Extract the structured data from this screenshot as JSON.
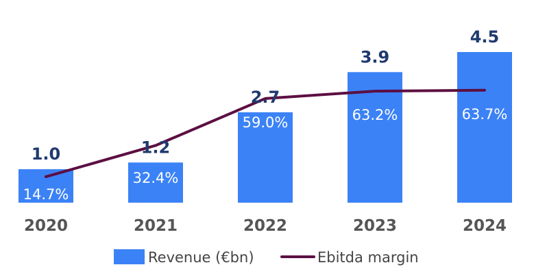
{
  "chart_data": {
    "type": "bar",
    "categories": [
      "2020",
      "2021",
      "2022",
      "2023",
      "2024"
    ],
    "series": [
      {
        "name": "Revenue (€bn)",
        "type": "bar",
        "values": [
          1.0,
          1.2,
          2.7,
          3.9,
          4.5
        ],
        "labels": [
          "1.0",
          "1.2",
          "2.7",
          "3.9",
          "4.5"
        ],
        "color": "#3b82f6"
      },
      {
        "name": "Ebitda margin",
        "type": "line",
        "values": [
          14.7,
          32.4,
          59.0,
          63.2,
          63.7
        ],
        "labels": [
          "14.7%",
          "32.4%",
          "59.0%",
          "63.2%",
          "63.7%"
        ],
        "color": "#5c0f42"
      }
    ],
    "value_label_color": "#1f3a6e",
    "margin_label_color": "#ffffff",
    "tick_label_color": "#555555",
    "legend": {
      "placement": "bottom",
      "text_color": "#444444"
    },
    "grid": false,
    "ylim_bar": [
      0,
      5.0
    ],
    "ylim_line": [
      0,
      90
    ]
  }
}
